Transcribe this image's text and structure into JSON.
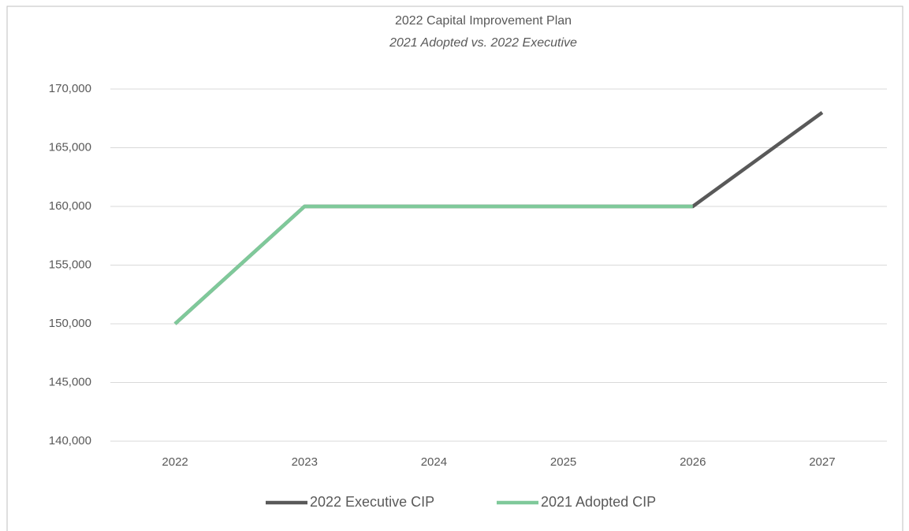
{
  "chart_data": {
    "type": "line",
    "title": "2022 Capital Improvement Plan",
    "subtitle": "2021 Adopted vs. 2022 Executive",
    "categories": [
      "2022",
      "2023",
      "2024",
      "2025",
      "2026",
      "2027"
    ],
    "series": [
      {
        "name": "2022 Executive CIP",
        "color": "#595959",
        "values": [
          150000,
          160000,
          160000,
          160000,
          160000,
          168000
        ]
      },
      {
        "name": "2021 Adopted CIP",
        "color": "#7fc99a",
        "values": [
          150000,
          160000,
          160000,
          160000,
          160000,
          null
        ]
      }
    ],
    "ylim": [
      140000,
      170000
    ],
    "yticks": [
      {
        "value": 140000,
        "label": "140,000"
      },
      {
        "value": 145000,
        "label": "145,000"
      },
      {
        "value": 150000,
        "label": "150,000"
      },
      {
        "value": 155000,
        "label": "155,000"
      },
      {
        "value": 160000,
        "label": "160,000"
      },
      {
        "value": 165000,
        "label": "165,000"
      },
      {
        "value": 170000,
        "label": "170,000"
      }
    ],
    "grid": true,
    "legend": "bottom"
  }
}
